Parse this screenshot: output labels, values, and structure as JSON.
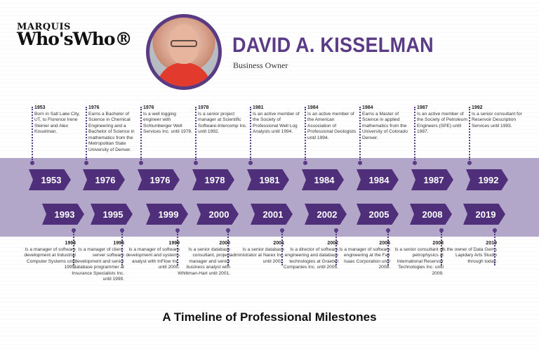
{
  "logo": {
    "line1": "MARQUIS",
    "line2": "Who'sWho®"
  },
  "person": {
    "name": "DAVID A. KISSELMAN",
    "role": "Business Owner"
  },
  "top_row": [
    {
      "year": "1953",
      "text": "Born in Salt Lake City, UT, to Florence Irene Steiner and Alex Kisselman."
    },
    {
      "year": "1976",
      "text": "Earns a Bachelor of Science in Chemical Engineering and a Bachelor of Science in mathematics from the Metropolitan State University of Denver."
    },
    {
      "year": "1976",
      "text": "Is a well logging engineer with Schlumberger Well Services Inc. until 1978."
    },
    {
      "year": "1978",
      "text": "Is a senior project manager at Scientific Software-Intercomp Inc. until 1992."
    },
    {
      "year": "1981",
      "text": "Is an active member of the Society of Professional Well Log Analysts until 1994."
    },
    {
      "year": "1984",
      "text": "Is an active member of the American Association of Professional Geologists until 1994."
    },
    {
      "year": "1984",
      "text": "Earns a Master of Science in applied mathematics from the University of Colorado Denver."
    },
    {
      "year": "1987",
      "text": "Is an active member of the Society of Petroleum Engineers (SPE) until 1987."
    },
    {
      "year": "1992",
      "text": "Is a senior consultant for Reservoir Description Services until 1993."
    }
  ],
  "bottom_row": [
    {
      "year": "1993",
      "text": "Is a manager of software development at Industrial Computer Systems until 1995."
    },
    {
      "year": "1995",
      "text": "Is a manager of client-server software development and senior database programmer at Insurance Specialists Inc. until 1999."
    },
    {
      "year": "1999",
      "text": "Is a manager of software development and systems analyst with InFlow Inc. until 2000."
    },
    {
      "year": "2000",
      "text": "Is a senior database consultant, project manager and senior business analyst with Whittman-Hart until 2001."
    },
    {
      "year": "2001",
      "text": "Is a senior database administrator at Narex Inc. until 2002."
    },
    {
      "year": "2002",
      "text": "Is a director of software engineering and database technologies at Graebel Companies Inc. until 2005."
    },
    {
      "year": "2005",
      "text": "Is a manager of software engineering at the Fair Isaac Corporation until 2008."
    },
    {
      "year": "2008",
      "text": "Is a senior consultant of petrophysics at International Reservoir Technologies Inc. until 2009."
    },
    {
      "year": "2019",
      "text": "Is the owner of Data Gems Lapidary Arts Studio through today."
    }
  ],
  "footer": "A Timeline of Professional Milestones",
  "colors": {
    "accent": "#5b3a86",
    "chevron": "#4f2f79",
    "band": "#b3a7c9"
  }
}
